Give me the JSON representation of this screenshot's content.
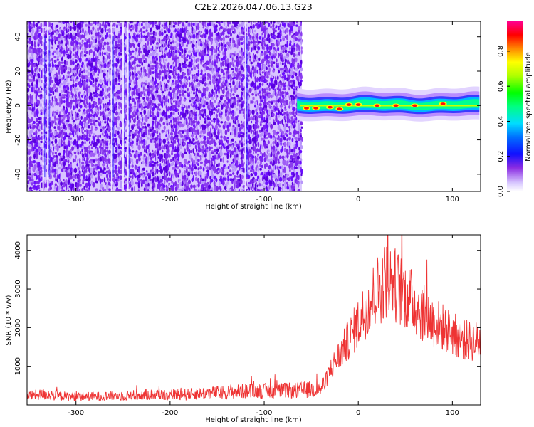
{
  "chart_data": [
    {
      "type": "heatmap",
      "title": "C2E2.2026.047.06.13.G23",
      "xlabel": "Height of straight line (km)",
      "ylabel": "Frequency (Hz)",
      "xlim": [
        -352,
        130
      ],
      "ylim": [
        -50,
        49
      ],
      "x_ticks": [
        -300,
        -200,
        -100,
        0,
        100
      ],
      "y_ticks": [
        -40,
        -20,
        0,
        20,
        40
      ],
      "colorbar": {
        "label": "Normalized spectral amplitude",
        "range": [
          0,
          0.97
        ],
        "ticks": [
          0.0,
          0.2,
          0.4,
          0.6,
          0.8
        ],
        "tick_labels": [
          "0.0",
          "0.2",
          "0.4",
          "0.6",
          "0.8"
        ]
      },
      "noise_region_km": [
        -352,
        -60
      ],
      "signal_band": {
        "x_range_km": [
          -65,
          130
        ],
        "center_freq_hz": 0,
        "half_width_hz": 4,
        "peak_km": [
          -55,
          -45,
          -30,
          -20,
          -10,
          0,
          20,
          40,
          60,
          90
        ],
        "peak_freq_hz": [
          -1.5,
          -1.5,
          -1,
          -2,
          0.5,
          0.5,
          0,
          0,
          0,
          1
        ]
      },
      "vertical_streaks_km": [
        -335,
        -330,
        -262,
        -250,
        -245,
        -120
      ]
    },
    {
      "type": "line",
      "xlabel": "Height of straight line (km)",
      "ylabel": "SNR (10 * v/v)",
      "xlim": [
        -352,
        130
      ],
      "ylim": [
        0,
        4400
      ],
      "x_ticks": [
        -300,
        -200,
        -100,
        0,
        100
      ],
      "y_ticks": [
        1000,
        2000,
        3000,
        4000
      ],
      "series": [
        {
          "name": "SNR",
          "color": "#ee3333",
          "x": [
            -352,
            -340,
            -330,
            -320,
            -300,
            -280,
            -260,
            -240,
            -220,
            -200,
            -180,
            -160,
            -140,
            -120,
            -100,
            -80,
            -60,
            -50,
            -40,
            -35,
            -30,
            -20,
            -10,
            0,
            10,
            20,
            30,
            40,
            50,
            60,
            70,
            80,
            90,
            100,
            110,
            120,
            130
          ],
          "values": [
            230,
            260,
            280,
            230,
            220,
            220,
            230,
            250,
            270,
            270,
            280,
            310,
            330,
            360,
            360,
            370,
            380,
            400,
            430,
            600,
            900,
            1300,
            1700,
            2100,
            2600,
            2950,
            3250,
            3100,
            2850,
            2600,
            2350,
            2150,
            2000,
            1850,
            1700,
            1650,
            1650
          ]
        }
      ]
    }
  ],
  "colors": {
    "snr_line": "#ee3333",
    "spectrogram_noise": "#7a1ef0"
  }
}
